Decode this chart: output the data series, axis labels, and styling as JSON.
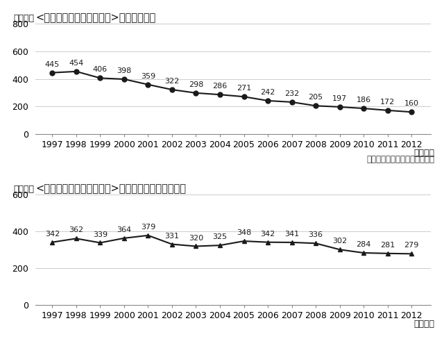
{
  "years": [
    1997,
    1998,
    1999,
    2000,
    2001,
    2002,
    2003,
    2004,
    2005,
    2006,
    2007,
    2008,
    2009,
    2010,
    2011,
    2012
  ],
  "chart1": {
    "title": "<新規免許取得者数の推移>（原付免許）",
    "values": [
      445,
      454,
      406,
      398,
      359,
      322,
      298,
      286,
      271,
      242,
      232,
      205,
      197,
      186,
      172,
      160
    ],
    "marker": "o",
    "ylim": [
      0,
      800
    ],
    "yticks": [
      0,
      200,
      400,
      600,
      800
    ]
  },
  "chart2": {
    "title": "<新規免許取得者数の推移>（普通・大型二輪免許）",
    "values": [
      342,
      362,
      339,
      364,
      379,
      331,
      320,
      325,
      348,
      342,
      341,
      336,
      302,
      284,
      281,
      279
    ],
    "marker": "^",
    "ylim": [
      0,
      600
    ],
    "yticks": [
      0,
      200,
      400,
      600
    ]
  },
  "ylabel": "（千人）",
  "xlabel": "（暦年）",
  "source": "出所）警察庁「運転免許統計」",
  "line_color": "#1a1a1a",
  "marker_color": "#1a1a1a",
  "bg_color": "#ffffff",
  "grid_color": "#cccccc",
  "label_fontsize": 9,
  "title_fontsize": 10.5,
  "annot_fontsize": 8.0
}
